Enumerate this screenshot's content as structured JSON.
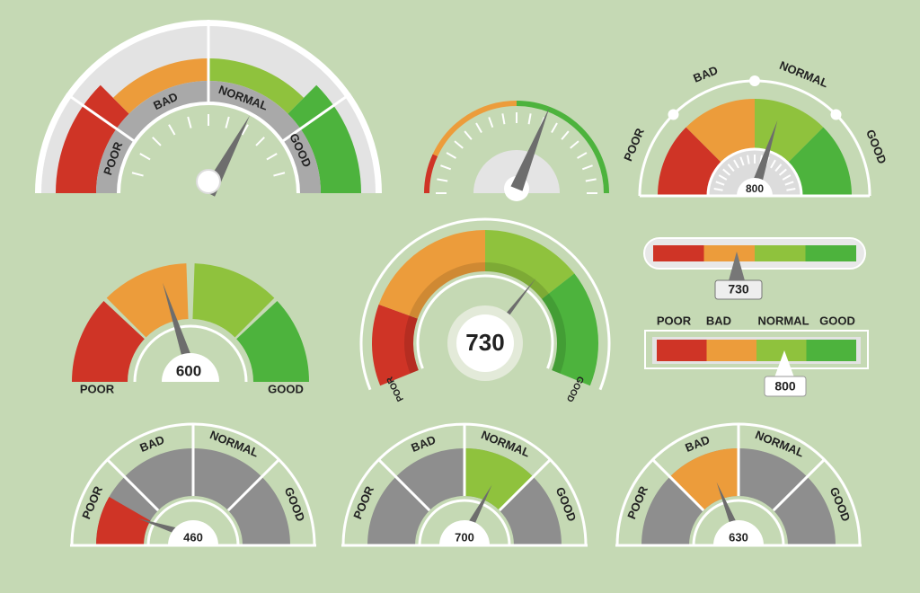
{
  "gauges": [
    {
      "labels": [
        "POOR",
        "BAD",
        "NORMAL",
        "GOOD"
      ]
    },
    {
      "labels": [
        "POOR",
        "BAD",
        "NORMAL",
        "GOOD"
      ],
      "value": 800
    },
    {
      "labels": [
        "POOR",
        "GOOD"
      ],
      "value": 600
    },
    {
      "labels": [
        "POOR",
        "GOOD"
      ],
      "value": 730
    },
    {
      "labels": [
        "POOR",
        "BAD",
        "NORMAL",
        "GOOD"
      ],
      "value": 460
    },
    {
      "labels": [
        "POOR",
        "BAD",
        "NORMAL",
        "GOOD"
      ],
      "value": 700
    },
    {
      "labels": [
        "POOR",
        "BAD",
        "NORMAL",
        "GOOD"
      ],
      "value": 630
    }
  ],
  "bars": [
    {
      "value": 730
    },
    {
      "labels": [
        "POOR",
        "BAD",
        "NORMAL",
        "GOOD"
      ],
      "value": 800
    }
  ]
}
